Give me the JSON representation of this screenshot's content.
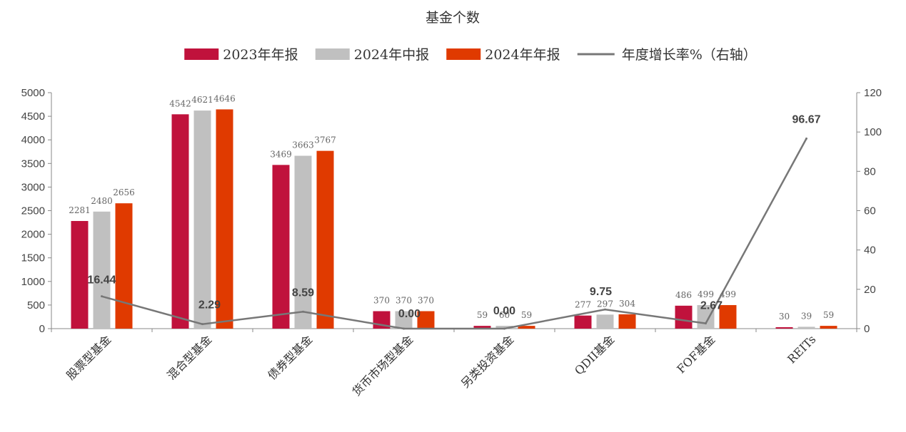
{
  "chart_data": {
    "type": "bar",
    "title": "基金个数",
    "categories": [
      "股票型基金",
      "混合型基金",
      "债券型基金",
      "货币市场型基金",
      "另类投资基金",
      "QDII基金",
      "FOF基金",
      "REITs"
    ],
    "series": [
      {
        "name": "2023年年报",
        "type": "bar",
        "axis": "left",
        "color": "#c0123c",
        "values": [
          2281,
          4542,
          3469,
          370,
          59,
          277,
          486,
          30
        ]
      },
      {
        "name": "2024年中报",
        "type": "bar",
        "axis": "left",
        "color": "#c0c0c0",
        "values": [
          2480,
          4621,
          3663,
          370,
          60,
          297,
          499,
          39
        ]
      },
      {
        "name": "2024年年报",
        "type": "bar",
        "axis": "left",
        "color": "#e03a00",
        "values": [
          2656,
          4646,
          3767,
          370,
          59,
          304,
          499,
          59
        ]
      },
      {
        "name": "年度增长率%（右轴）",
        "type": "line",
        "axis": "right",
        "color": "#777777",
        "values": [
          16.44,
          2.29,
          8.59,
          0.0,
          0.0,
          9.75,
          2.67,
          96.67
        ]
      }
    ],
    "bar_value_labels": [
      [
        "2281",
        "4542",
        "3469",
        "370",
        "59",
        "277",
        "486",
        "30"
      ],
      [
        "2480",
        "4621",
        "3663",
        "370",
        "60",
        "297",
        "499",
        "39"
      ],
      [
        "2656",
        "4646",
        "3767",
        "370",
        "59",
        "304",
        "499",
        "59"
      ]
    ],
    "line_value_labels": [
      "16.44",
      "2.29",
      "8.59",
      "0.00",
      "0.00",
      "9.75",
      "2.67",
      "96.67"
    ],
    "ylim_left": [
      0,
      5000
    ],
    "yticks_left": [
      0,
      500,
      1000,
      1500,
      2000,
      2500,
      3000,
      3500,
      4000,
      4500,
      5000
    ],
    "ylim_right": [
      0,
      120
    ],
    "yticks_right": [
      0,
      20,
      40,
      60,
      80,
      100,
      120
    ],
    "legend_position": "top-center",
    "grid": false
  }
}
